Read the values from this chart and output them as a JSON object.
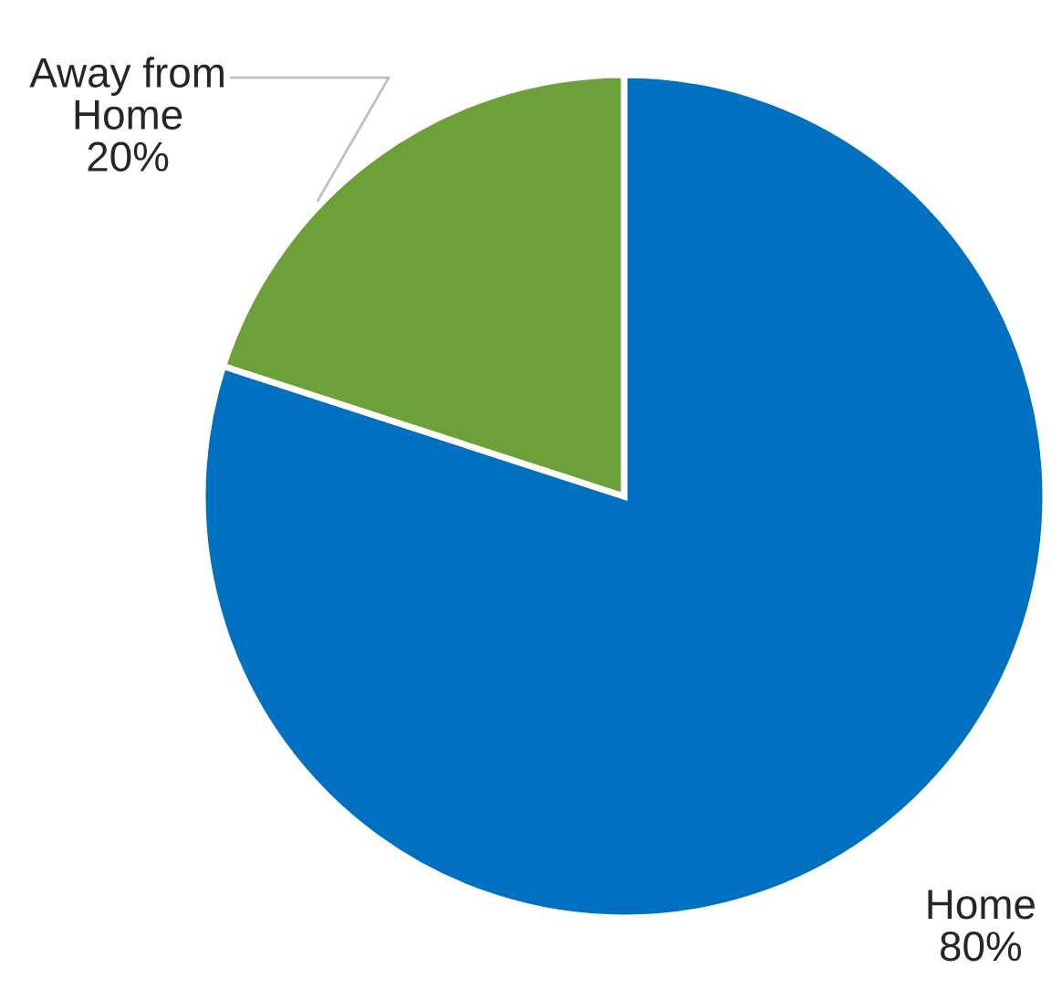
{
  "chart_data": {
    "type": "pie",
    "categories": [
      "Home",
      "Away from Home"
    ],
    "values": [
      80,
      20
    ],
    "colors": [
      "#0070c0",
      "#6ea03a"
    ],
    "value_labels": [
      "80%",
      "20%"
    ],
    "legend": false
  }
}
